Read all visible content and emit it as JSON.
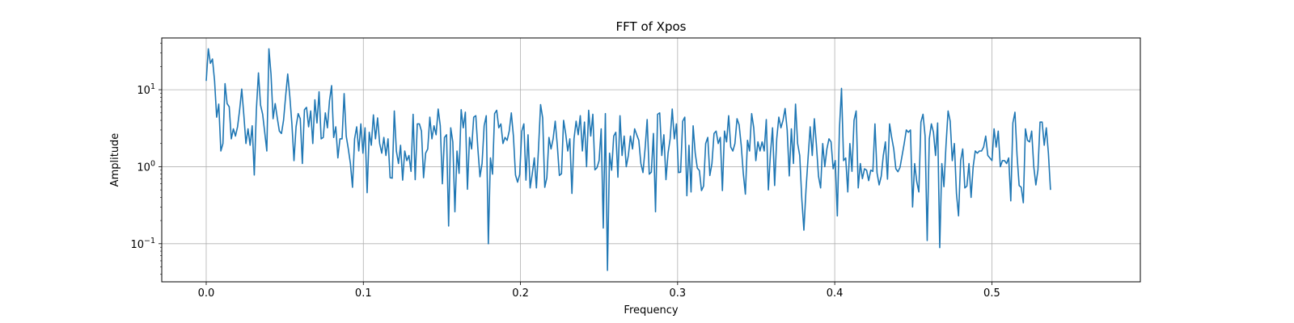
{
  "chart_data": {
    "type": "line",
    "title": "FFT of Xpos",
    "xlabel": "Frequency",
    "ylabel": "Amplitude",
    "yscale": "log",
    "xlim": [
      -0.0283,
      0.5945
    ],
    "ylim": [
      0.032,
      47
    ],
    "grid": true,
    "line_color": "#1f77b4",
    "x_ticks": [
      0.0,
      0.1,
      0.2,
      0.3,
      0.4,
      0.5
    ],
    "x_tick_labels": [
      "0.0",
      "0.1",
      "0.2",
      "0.3",
      "0.4",
      "0.5"
    ],
    "y_ticks": [
      {
        "value": 10,
        "base": "10",
        "exp": "1"
      },
      {
        "value": 1,
        "base": "10",
        "exp": "0"
      },
      {
        "value": 0.1,
        "base": "10",
        "exp": "−1"
      }
    ],
    "series": [
      {
        "x_start": 0.0,
        "x_step": 0.00133,
        "values": [
          13,
          34,
          22,
          25,
          13,
          4.4,
          6.5,
          1.6,
          2.0,
          12,
          6.6,
          6.0,
          2.3,
          3.1,
          2.5,
          3.3,
          5.5,
          10.2,
          4.7,
          2.0,
          3.1,
          1.9,
          3.4,
          0.78,
          5.5,
          16.5,
          6.3,
          4.8,
          2.8,
          1.6,
          34,
          16,
          4.2,
          6.6,
          4.3,
          2.9,
          2.7,
          4.0,
          8.2,
          16,
          8.2,
          3.6,
          1.2,
          3.3,
          4.9,
          4.2,
          1.1,
          5.5,
          5.9,
          3.3,
          5.3,
          2.0,
          7.4,
          3.7,
          9.4,
          2.3,
          2.4,
          5.0,
          3.2,
          7.2,
          11.3,
          2.4,
          3.3,
          1.3,
          2.3,
          2.3,
          8.9,
          2.5,
          1.7,
          1.1,
          0.54,
          2.3,
          3.3,
          1.6,
          3.6,
          1.5,
          3.2,
          0.46,
          2.8,
          1.9,
          4.7,
          2.3,
          4.3,
          2.0,
          1.5,
          2.4,
          1.4,
          2.3,
          0.72,
          0.71,
          5.3,
          1.6,
          1.1,
          1.9,
          0.67,
          1.6,
          1.2,
          1.4,
          0.87,
          4.8,
          0.68,
          3.6,
          3.6,
          2.9,
          0.72,
          1.5,
          1.7,
          4.4,
          2.3,
          3.4,
          2.6,
          5.6,
          3.4,
          0.6,
          2.4,
          2.6,
          0.17,
          3.2,
          2.1,
          0.26,
          1.6,
          0.82,
          5.5,
          3.2,
          5.1,
          0.51,
          2.4,
          1.7,
          4.4,
          4.6,
          1.7,
          0.74,
          1.1,
          3.4,
          4.6,
          0.1,
          1.3,
          0.8,
          4.9,
          5.4,
          3.2,
          3.6,
          2.0,
          2.4,
          2.2,
          2.9,
          5.0,
          2.5,
          0.78,
          0.63,
          0.79,
          2.9,
          3.6,
          0.67,
          2.6,
          0.53,
          0.8,
          1.3,
          0.53,
          1.7,
          6.4,
          4.3,
          0.54,
          0.72,
          2.4,
          1.7,
          2.3,
          3.9,
          1.9,
          0.77,
          0.81,
          4.0,
          2.7,
          1.6,
          2.3,
          0.45,
          2.3,
          3.9,
          2.6,
          4.6,
          1.6,
          3.8,
          1.0,
          5.4,
          2.5,
          4.8,
          0.91,
          0.97,
          1.2,
          3.1,
          0.16,
          4.9,
          0.045,
          1.5,
          0.9,
          2.5,
          2.8,
          0.73,
          4.6,
          1.4,
          2.5,
          1.0,
          1.4,
          2.5,
          1.7,
          3.1,
          2.6,
          2.2,
          1.1,
          0.84,
          1.7,
          4.1,
          0.8,
          0.85,
          2.7,
          0.26,
          4.8,
          5.0,
          1.4,
          2.6,
          0.68,
          1.5,
          2.3,
          5.6,
          2.3,
          3.6,
          0.84,
          0.85,
          3.9,
          4.4,
          0.42,
          1.9,
          0.47,
          3.4,
          1.5,
          0.96,
          0.89,
          0.49,
          0.56,
          2.0,
          2.4,
          0.77,
          1.1,
          2.7,
          2.9,
          2.0,
          2.4,
          0.49,
          2.9,
          2.1,
          4.6,
          1.8,
          1.6,
          2.0,
          4.2,
          3.5,
          1.9,
          0.82,
          0.44,
          2.2,
          1.6,
          4.9,
          3.2,
          1.2,
          2.1,
          1.6,
          2.1,
          1.6,
          4.1,
          0.5,
          1.5,
          3.2,
          0.57,
          2.3,
          4.4,
          3.2,
          4.0,
          5.7,
          3.0,
          0.76,
          3.1,
          1.1,
          6.5,
          2.0,
          1.4,
          0.38,
          0.15,
          0.5,
          1.3,
          3.3,
          1.4,
          4.2,
          1.9,
          0.75,
          0.53,
          2.0,
          1.0,
          1.7,
          2.3,
          2.1,
          0.94,
          1.2,
          0.23,
          3.1,
          10.4,
          1.2,
          1.3,
          0.47,
          2.0,
          0.87,
          4.0,
          5.3,
          0.53,
          1.1,
          0.7,
          0.94,
          0.9,
          0.66,
          0.9,
          0.87,
          3.6,
          0.83,
          0.58,
          0.75,
          1.4,
          2.1,
          0.69,
          3.6,
          2.4,
          1.7,
          0.94,
          0.86,
          0.98,
          1.4,
          2.0,
          3.0,
          2.8,
          3.0,
          0.3,
          1.1,
          0.64,
          0.47,
          3.8,
          4.8,
          2.5,
          0.11,
          2.3,
          3.6,
          2.8,
          1.4,
          3.7,
          0.089,
          1.1,
          0.55,
          1.9,
          5.3,
          3.9,
          1.2,
          2.0,
          0.45,
          0.23,
          1.2,
          1.7,
          0.53,
          0.56,
          1.1,
          0.4,
          1.0,
          1.6,
          1.5,
          1.6,
          1.6,
          1.8,
          2.5,
          1.4,
          1.3,
          1.2,
          3.1,
          1.8,
          2.9,
          1.0,
          1.2,
          1.2,
          1.1,
          1.3,
          0.36,
          3.7,
          5.1,
          1.4,
          0.57,
          0.54,
          0.34,
          3.1,
          2.2,
          2.1,
          2.9,
          1.0,
          0.58,
          0.91,
          3.8,
          3.8,
          1.9,
          3.2,
          1.5,
          0.5
        ]
      }
    ]
  }
}
